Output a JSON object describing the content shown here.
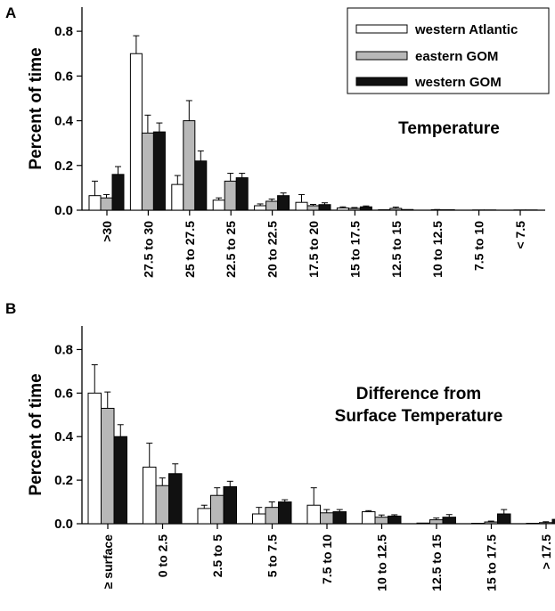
{
  "chart_data": [
    {
      "panel_label": "A",
      "type": "bar",
      "ylabel": "Percent of time",
      "annotation": [
        "Temperature"
      ],
      "ylim": [
        0,
        0.9
      ],
      "yticks": [
        "0.0",
        "0.2",
        "0.4",
        "0.6",
        "0.8"
      ],
      "legend": {
        "placement": "top-right",
        "entries": [
          "western Atlantic",
          "eastern GOM",
          "western GOM"
        ]
      },
      "categories": [
        ">30",
        "27.5 to 30",
        "25 to 27.5",
        "22.5 to 25",
        "20 to 22.5",
        "17.5 to 20",
        "15 to 17.5",
        "12.5 to 15",
        "10 to 12.5",
        "7.5 to 10",
        "< 7.5"
      ],
      "series": [
        {
          "name": "western Atlantic",
          "color": "#ffffff",
          "values": [
            0.065,
            0.7,
            0.115,
            0.045,
            0.02,
            0.035,
            0.01,
            0.002,
            0.0,
            0.0,
            0.0
          ],
          "errors": [
            0.065,
            0.08,
            0.04,
            0.01,
            0.008,
            0.035,
            0.005,
            0.0,
            0.0,
            0.0,
            0.0
          ]
        },
        {
          "name": "eastern GOM",
          "color": "#b8b8b8",
          "values": [
            0.055,
            0.345,
            0.4,
            0.13,
            0.04,
            0.02,
            0.008,
            0.008,
            0.002,
            0.001,
            0.001
          ],
          "errors": [
            0.015,
            0.08,
            0.09,
            0.035,
            0.01,
            0.006,
            0.004,
            0.006,
            0.001,
            0.0,
            0.0
          ]
        },
        {
          "name": "western GOM",
          "color": "#111111",
          "values": [
            0.16,
            0.35,
            0.22,
            0.145,
            0.065,
            0.025,
            0.015,
            0.003,
            0.002,
            0.001,
            0.001
          ],
          "errors": [
            0.035,
            0.04,
            0.045,
            0.02,
            0.012,
            0.008,
            0.004,
            0.0,
            0.0,
            0.0,
            0.0
          ]
        }
      ]
    },
    {
      "panel_label": "B",
      "type": "bar",
      "ylabel": "Percent of time",
      "annotation": [
        "Difference from",
        "Surface Temperature"
      ],
      "ylim": [
        0,
        0.9
      ],
      "yticks": [
        "0.0",
        "0.2",
        "0.4",
        "0.6",
        "0.8"
      ],
      "categories": [
        "≥ surface",
        "0 to 2.5",
        "2.5 to 5",
        "5 to 7.5",
        "7.5 to 10",
        "10 to 12.5",
        "12.5 to 15",
        "15 to 17.5",
        "> 17.5"
      ],
      "series": [
        {
          "name": "western Atlantic",
          "color": "#ffffff",
          "values": [
            0.6,
            0.26,
            0.07,
            0.045,
            0.085,
            0.055,
            0.003,
            0.002,
            0.002
          ],
          "errors": [
            0.13,
            0.11,
            0.015,
            0.03,
            0.08,
            0.005,
            0.0,
            0.0,
            0.0
          ]
        },
        {
          "name": "eastern GOM",
          "color": "#b8b8b8",
          "values": [
            0.53,
            0.175,
            0.13,
            0.075,
            0.05,
            0.03,
            0.018,
            0.008,
            0.005
          ],
          "errors": [
            0.075,
            0.035,
            0.035,
            0.025,
            0.015,
            0.01,
            0.008,
            0.004,
            0.004
          ]
        },
        {
          "name": "western GOM",
          "color": "#111111",
          "values": [
            0.4,
            0.23,
            0.17,
            0.1,
            0.055,
            0.035,
            0.03,
            0.045,
            0.02
          ],
          "errors": [
            0.055,
            0.045,
            0.025,
            0.01,
            0.01,
            0.006,
            0.012,
            0.02,
            0.008
          ]
        }
      ]
    }
  ]
}
